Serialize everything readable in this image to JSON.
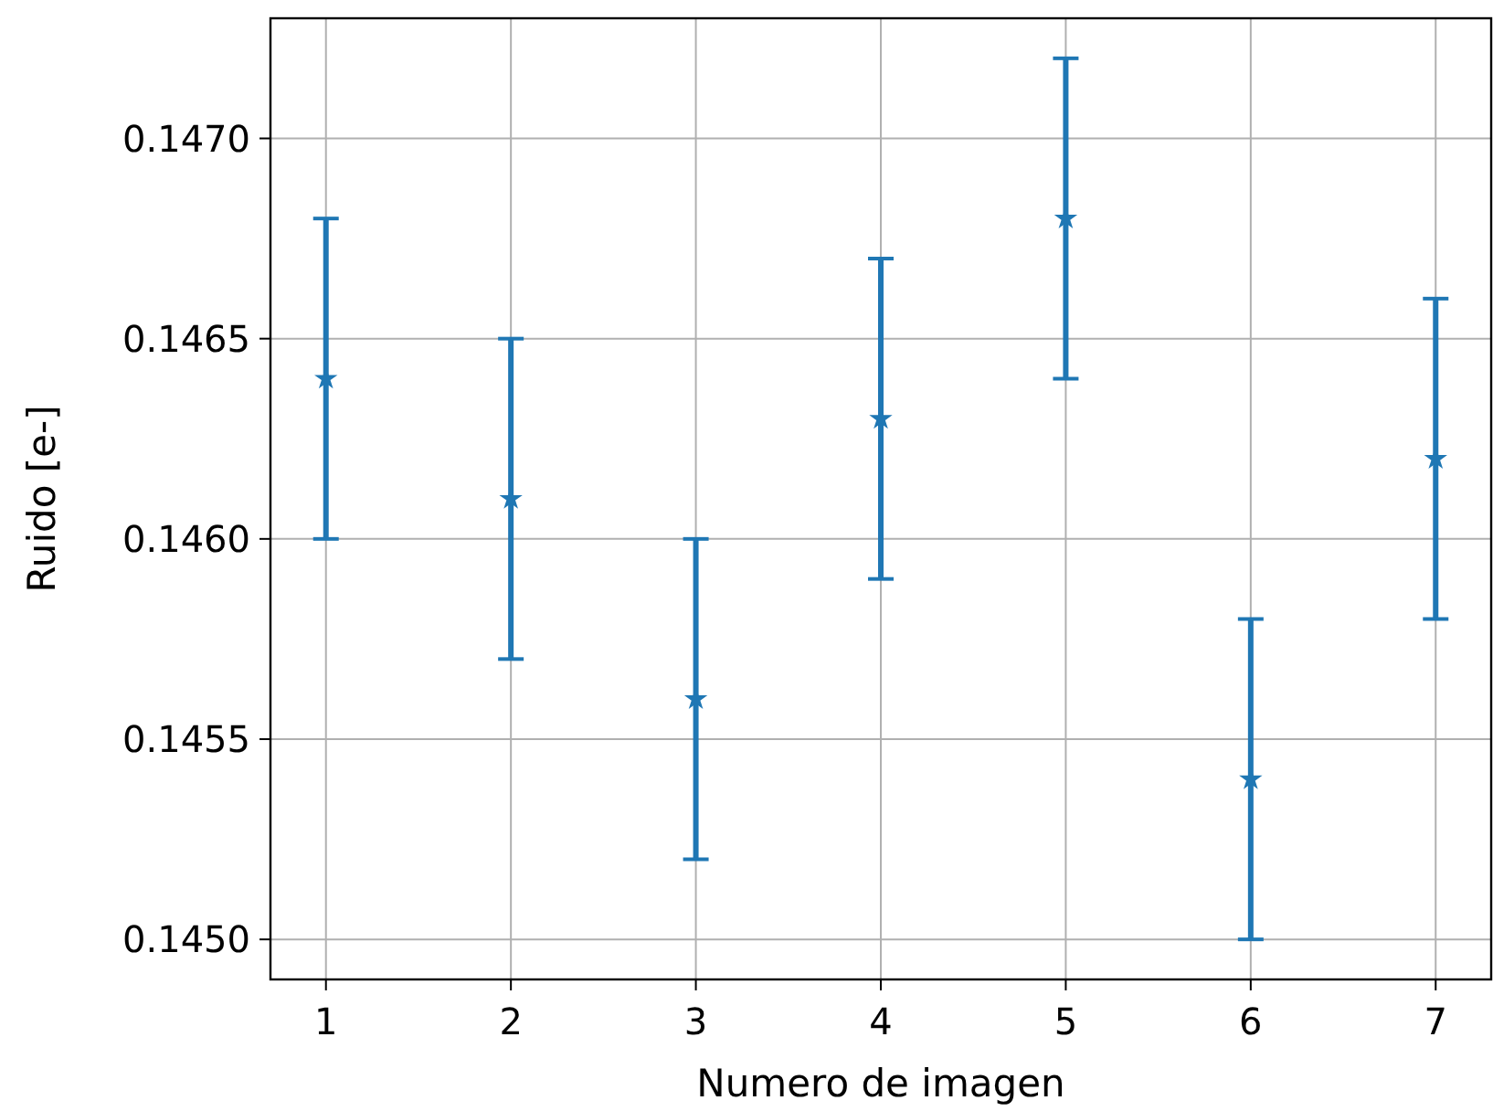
{
  "chart_data": {
    "type": "scatter",
    "xlabel": "Numero de imagen",
    "ylabel": "Ruido [e-]",
    "x": [
      1,
      2,
      3,
      4,
      5,
      6,
      7
    ],
    "series": [
      {
        "color": "#1f77b4",
        "values": [
          0.1464,
          0.1461,
          0.1456,
          0.1463,
          0.1468,
          0.1454,
          0.1462
        ],
        "errors": [
          0.0004,
          0.0004,
          0.0004,
          0.0004,
          0.0004,
          0.0004,
          0.0004
        ]
      }
    ],
    "xlim": [
      0.7,
      7.3
    ],
    "xticks": [
      1,
      2,
      3,
      4,
      5,
      6,
      7
    ],
    "ylim": [
      0.1449,
      0.1473
    ],
    "yticks": [
      {
        "value": 0.145,
        "label": "0.1450"
      },
      {
        "value": 0.1455,
        "label": "0.1455"
      },
      {
        "value": 0.146,
        "label": "0.1460"
      },
      {
        "value": 0.1465,
        "label": "0.1465"
      },
      {
        "value": 0.147,
        "label": "0.1470"
      }
    ],
    "grid": true,
    "marker": "star",
    "line_style": "none"
  }
}
